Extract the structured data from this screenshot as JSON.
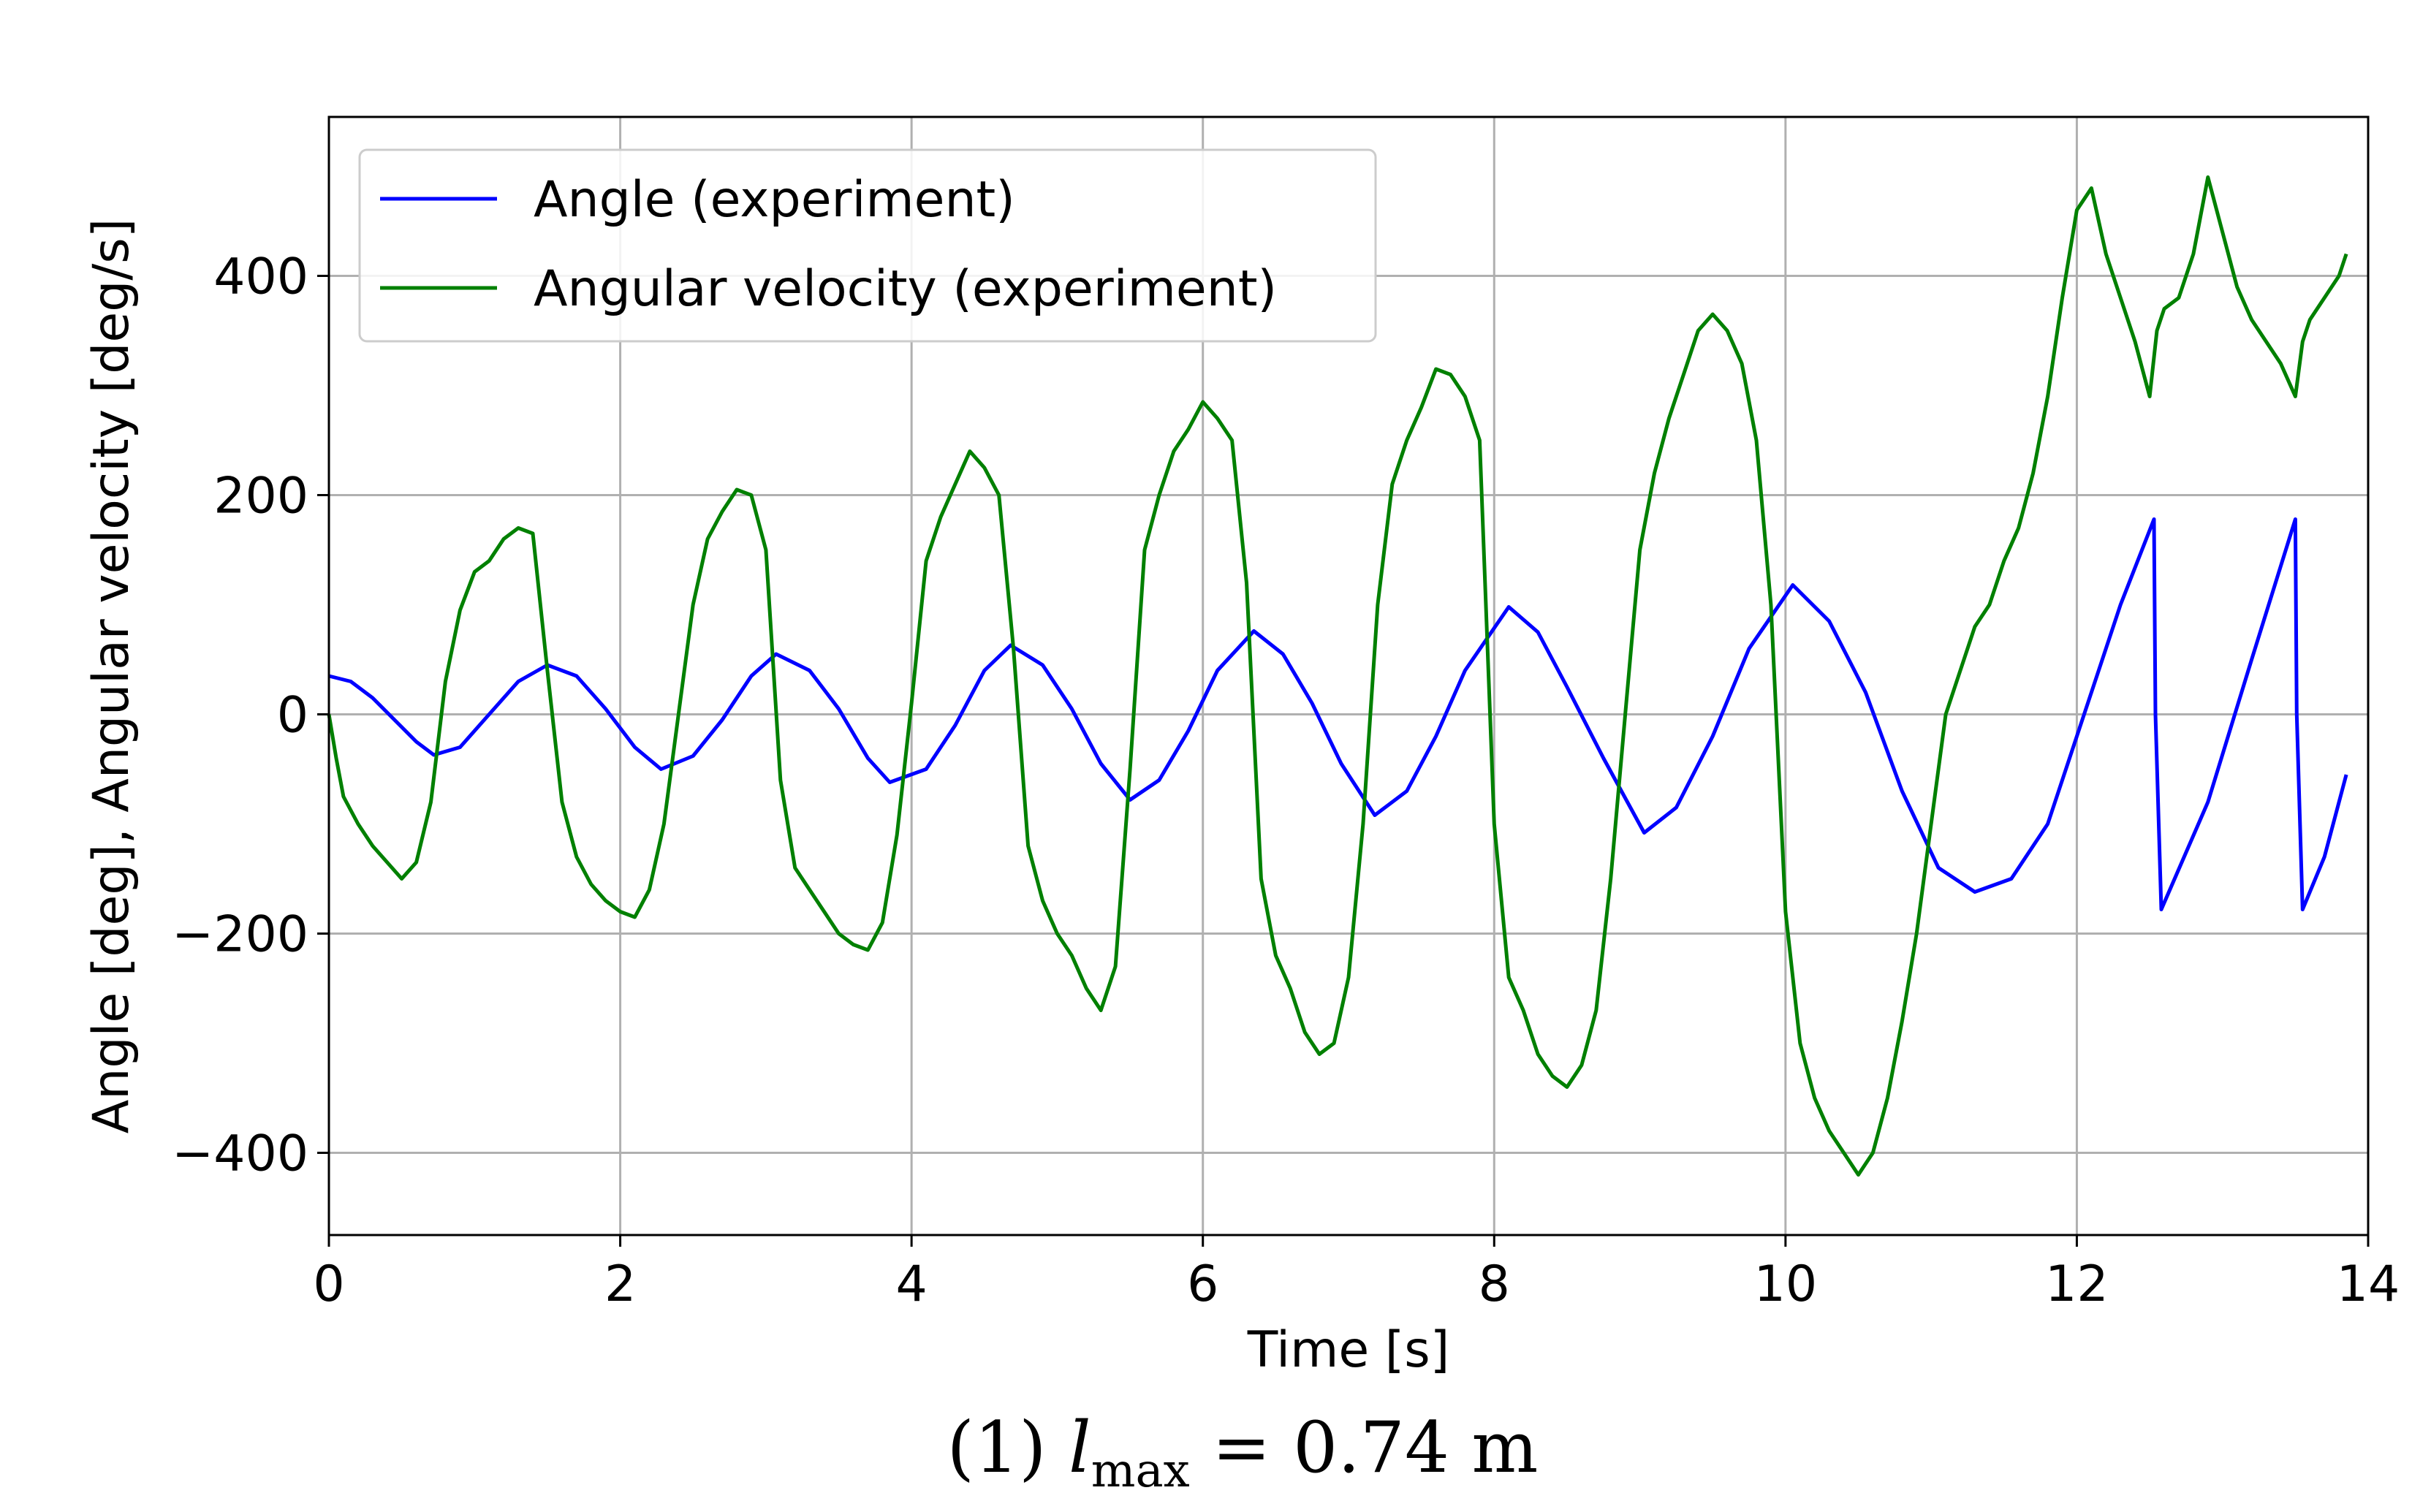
{
  "caption": {
    "prefix": "(1) ",
    "symbol": "l",
    "subscript": "max",
    "suffix": " = 0.74 m"
  },
  "chart_data": {
    "type": "line",
    "xlabel": "Time [s]",
    "ylabel": "Angle [deg], Angular velocity [deg/s]",
    "xlim": [
      0,
      14
    ],
    "ylim": [
      -475,
      545
    ],
    "xticks": [
      0,
      2,
      4,
      6,
      8,
      10,
      12,
      14
    ],
    "yticks": [
      -400,
      -200,
      0,
      200,
      400
    ],
    "ytick_labels": [
      "−400",
      "−200",
      "0",
      "200",
      "400"
    ],
    "grid": true,
    "legend": {
      "placement": "top-left"
    },
    "series": [
      {
        "name": "Angle (experiment)",
        "color": "#0000ff",
        "x": [
          0,
          0.15,
          0.3,
          0.45,
          0.6,
          0.72,
          0.9,
          1.1,
          1.3,
          1.5,
          1.7,
          1.9,
          2.1,
          2.28,
          2.5,
          2.7,
          2.9,
          3.07,
          3.3,
          3.5,
          3.7,
          3.85,
          4.1,
          4.3,
          4.5,
          4.68,
          4.9,
          5.1,
          5.3,
          5.5,
          5.7,
          5.9,
          6.1,
          6.35,
          6.55,
          6.75,
          6.95,
          7.18,
          7.4,
          7.6,
          7.8,
          8.1,
          8.3,
          8.5,
          8.75,
          9.03,
          9.25,
          9.5,
          9.75,
          10.05,
          10.3,
          10.55,
          10.8,
          11.05,
          11.3,
          11.55,
          11.8,
          12.05,
          12.3,
          12.53,
          12.54,
          12.58,
          12.9,
          13.2,
          13.5,
          13.51,
          13.55,
          13.7,
          13.85
        ],
        "y": [
          35,
          30,
          15,
          -5,
          -25,
          -37,
          -30,
          0,
          30,
          45,
          35,
          5,
          -30,
          -50,
          -38,
          -5,
          35,
          55,
          40,
          5,
          -40,
          -62,
          -50,
          -10,
          40,
          63,
          45,
          5,
          -45,
          -78,
          -60,
          -15,
          40,
          76,
          55,
          10,
          -45,
          -92,
          -70,
          -20,
          40,
          98,
          75,
          25,
          -40,
          -108,
          -85,
          -20,
          60,
          118,
          85,
          20,
          -70,
          -140,
          -162,
          -150,
          -100,
          0,
          100,
          178,
          0,
          -178,
          -80,
          50,
          178,
          0,
          -178,
          -130,
          -55
        ]
      },
      {
        "name": "Angular velocity (experiment)",
        "color": "#008000",
        "x": [
          0,
          0.05,
          0.1,
          0.2,
          0.3,
          0.4,
          0.5,
          0.6,
          0.7,
          0.8,
          0.9,
          1.0,
          1.1,
          1.2,
          1.3,
          1.4,
          1.5,
          1.6,
          1.7,
          1.8,
          1.9,
          2.0,
          2.1,
          2.2,
          2.3,
          2.4,
          2.5,
          2.6,
          2.7,
          2.8,
          2.9,
          3.0,
          3.1,
          3.2,
          3.3,
          3.4,
          3.5,
          3.6,
          3.7,
          3.8,
          3.9,
          4.0,
          4.1,
          4.2,
          4.3,
          4.4,
          4.5,
          4.6,
          4.7,
          4.8,
          4.9,
          5.0,
          5.1,
          5.2,
          5.3,
          5.4,
          5.5,
          5.6,
          5.7,
          5.8,
          5.9,
          6.0,
          6.1,
          6.2,
          6.3,
          6.4,
          6.5,
          6.6,
          6.7,
          6.8,
          6.9,
          7.0,
          7.1,
          7.2,
          7.3,
          7.4,
          7.5,
          7.6,
          7.7,
          7.8,
          7.9,
          8.0,
          8.1,
          8.2,
          8.3,
          8.4,
          8.5,
          8.6,
          8.7,
          8.8,
          8.9,
          9.0,
          9.1,
          9.2,
          9.3,
          9.4,
          9.5,
          9.6,
          9.7,
          9.8,
          9.9,
          10.0,
          10.1,
          10.2,
          10.3,
          10.4,
          10.5,
          10.6,
          10.7,
          10.8,
          10.9,
          11.0,
          11.1,
          11.2,
          11.3,
          11.4,
          11.5,
          11.6,
          11.7,
          11.8,
          11.9,
          12.0,
          12.1,
          12.2,
          12.3,
          12.4,
          12.5,
          12.55,
          12.6,
          12.7,
          12.8,
          12.9,
          13.0,
          13.1,
          13.2,
          13.3,
          13.4,
          13.5,
          13.55,
          13.6,
          13.7,
          13.8,
          13.85
        ],
        "y": [
          0,
          -40,
          -75,
          -100,
          -120,
          -135,
          -150,
          -135,
          -80,
          30,
          95,
          130,
          140,
          160,
          170,
          165,
          40,
          -80,
          -130,
          -155,
          -170,
          -180,
          -185,
          -160,
          -100,
          0,
          100,
          160,
          185,
          205,
          200,
          150,
          -60,
          -140,
          -160,
          -180,
          -200,
          -210,
          -215,
          -190,
          -110,
          10,
          140,
          180,
          210,
          240,
          225,
          200,
          60,
          -120,
          -170,
          -200,
          -220,
          -250,
          -270,
          -230,
          -50,
          150,
          200,
          240,
          260,
          285,
          270,
          250,
          120,
          -150,
          -220,
          -250,
          -290,
          -310,
          -300,
          -240,
          -100,
          100,
          210,
          250,
          280,
          315,
          310,
          290,
          250,
          -100,
          -240,
          -270,
          -310,
          -330,
          -340,
          -320,
          -270,
          -150,
          0,
          150,
          220,
          270,
          310,
          350,
          365,
          350,
          320,
          250,
          100,
          -180,
          -300,
          -350,
          -380,
          -400,
          -420,
          -400,
          -350,
          -280,
          -200,
          -100,
          0,
          40,
          80,
          100,
          140,
          170,
          220,
          290,
          380,
          460,
          480,
          420,
          380,
          340,
          290,
          350,
          370,
          380,
          420,
          490,
          440,
          390,
          360,
          340,
          320,
          290,
          340,
          360,
          380,
          400,
          420
        ]
      }
    ]
  }
}
